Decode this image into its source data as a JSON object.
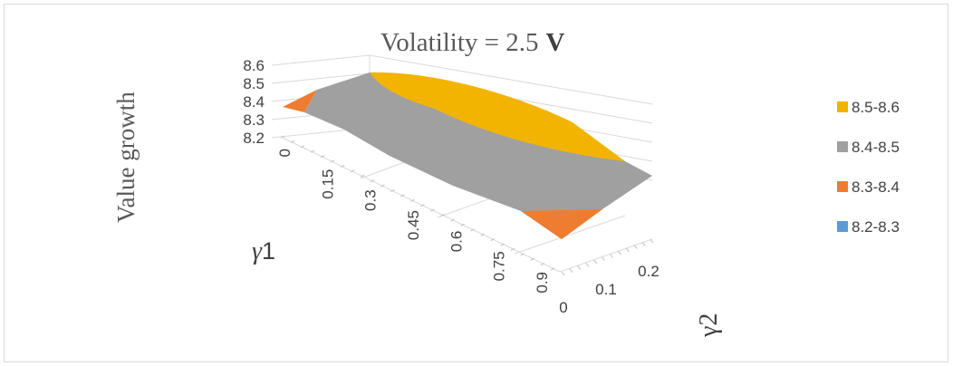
{
  "chart_data": {
    "type": "surface",
    "title": "Volatility = 2.5",
    "title_unit": "V",
    "zlabel": "Value growth",
    "xlabel_symbol": "γ",
    "xlabel_index": "1",
    "ylabel_symbol": "γ",
    "ylabel_index": "2",
    "z_ticks": [
      "8.2",
      "8.3",
      "8.4",
      "8.5",
      "8.6"
    ],
    "zlim": [
      8.2,
      8.6
    ],
    "x_ticks": [
      "0",
      "0.15",
      "0.3",
      "0.45",
      "0.6",
      "0.75",
      "0.9"
    ],
    "y_ticks": [
      "0",
      "0.1",
      "0.2"
    ],
    "bands": [
      {
        "label": "8.5-8.6",
        "color": "#f2b400"
      },
      {
        "label": "8.4-8.5",
        "color": "#a0a0a0"
      },
      {
        "label": "8.3-8.4",
        "color": "#ef7d31"
      },
      {
        "label": "8.2-8.3",
        "color": "#5b9bd5"
      }
    ],
    "legend_position": "right"
  }
}
